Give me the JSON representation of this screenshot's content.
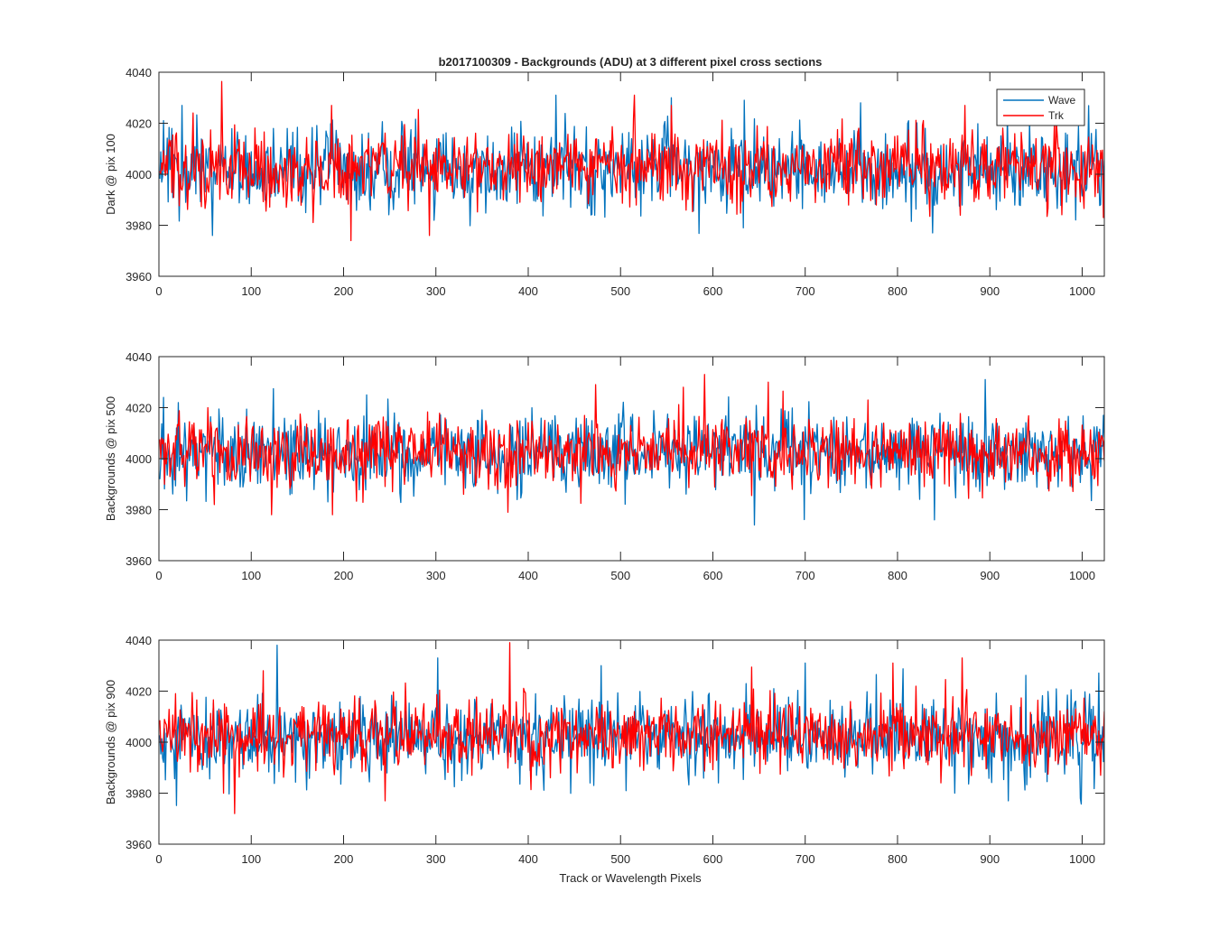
{
  "figure": {
    "title": "b2017100309 - Backgrounds (ADU) at 3 different pixel cross sections",
    "xlabel": "Track or Wavelength Pixels"
  },
  "legend": {
    "entries": [
      {
        "name": "Wave",
        "color": "#0072BD"
      },
      {
        "name": "Trk",
        "color": "#FF0000"
      }
    ],
    "placement": "top-right"
  },
  "chart_data": [
    {
      "type": "line",
      "ylabel": "Dark @ pix 100",
      "xlim": [
        0,
        1024
      ],
      "ylim": [
        3960,
        4040
      ],
      "xticks": [
        0,
        100,
        200,
        300,
        400,
        500,
        600,
        700,
        800,
        900,
        1000
      ],
      "yticks": [
        3960,
        3980,
        4000,
        4020,
        4040
      ],
      "grid": false,
      "series": [
        {
          "name": "Wave",
          "color": "#0072BD",
          "x_range": [
            1,
            1024
          ],
          "mean": 4002,
          "std": 8,
          "peaks": [
            [
              5,
              4021
            ],
            [
              25,
              4027
            ],
            [
              58,
              3976
            ],
            [
              430,
              4031
            ],
            [
              555,
              4030
            ],
            [
              633,
              3979
            ],
            [
              760,
              4028
            ],
            [
              838,
              3977
            ],
            [
              1010,
              4016
            ]
          ]
        },
        {
          "name": "Trk",
          "color": "#FF0000",
          "x_range": [
            1,
            1024
          ],
          "mean": 4003,
          "std": 7,
          "peaks": [
            [
              37,
              4024
            ],
            [
              187,
              4027
            ],
            [
              208,
              3974
            ],
            [
              293,
              3976
            ],
            [
              515,
              4031
            ],
            [
              555,
              4027
            ],
            [
              873,
              4027
            ],
            [
              1023,
              3983
            ]
          ]
        }
      ]
    },
    {
      "type": "line",
      "ylabel": "Backgrounds @ pix 500",
      "xlim": [
        0,
        1024
      ],
      "ylim": [
        3960,
        4040
      ],
      "xticks": [
        0,
        100,
        200,
        300,
        400,
        500,
        600,
        700,
        800,
        900,
        1000
      ],
      "yticks": [
        3960,
        3980,
        4000,
        4020,
        4040
      ],
      "grid": false,
      "series": [
        {
          "name": "Wave",
          "color": "#0072BD",
          "x_range": [
            1,
            1024
          ],
          "mean": 4002,
          "std": 8,
          "peaks": [
            [
              5,
              4024
            ],
            [
              225,
              4025
            ],
            [
              645,
              3974
            ],
            [
              840,
              3976
            ],
            [
              895,
              4031
            ],
            [
              1023,
              4017
            ]
          ]
        },
        {
          "name": "Trk",
          "color": "#FF0000",
          "x_range": [
            1,
            1024
          ],
          "mean": 4003,
          "std": 7,
          "peaks": [
            [
              60,
              3982
            ],
            [
              122,
              3978
            ],
            [
              188,
              3978
            ],
            [
              378,
              3979
            ],
            [
              473,
              4029
            ],
            [
              568,
              4028
            ],
            [
              591,
              4033
            ],
            [
              660,
              4030
            ],
            [
              768,
              4023
            ]
          ]
        }
      ]
    },
    {
      "type": "line",
      "ylabel": "Backgrounds @ pix 900",
      "xlim": [
        0,
        1024
      ],
      "ylim": [
        3960,
        4040
      ],
      "xticks": [
        0,
        100,
        200,
        300,
        400,
        500,
        600,
        700,
        800,
        900,
        1000
      ],
      "yticks": [
        3960,
        3980,
        4000,
        4020,
        4040
      ],
      "grid": false,
      "series": [
        {
          "name": "Wave",
          "color": "#0072BD",
          "x_range": [
            1,
            1024
          ],
          "mean": 4002,
          "std": 8,
          "peaks": [
            [
              128,
              4038
            ],
            [
              302,
              4033
            ],
            [
              479,
              4030
            ],
            [
              700,
              4031
            ],
            [
              862,
              3980
            ],
            [
              920,
              3977
            ],
            [
              998,
              3978
            ],
            [
              1012,
              4014
            ]
          ]
        },
        {
          "name": "Trk",
          "color": "#FF0000",
          "x_range": [
            1,
            1024
          ],
          "mean": 4003,
          "std": 7,
          "peaks": [
            [
              70,
              3980
            ],
            [
              82,
              3972
            ],
            [
              113,
              4028
            ],
            [
              245,
              3977
            ],
            [
              380,
              4039
            ],
            [
              795,
              4031
            ],
            [
              870,
              4033
            ],
            [
              1020,
              3987
            ]
          ]
        }
      ]
    }
  ]
}
